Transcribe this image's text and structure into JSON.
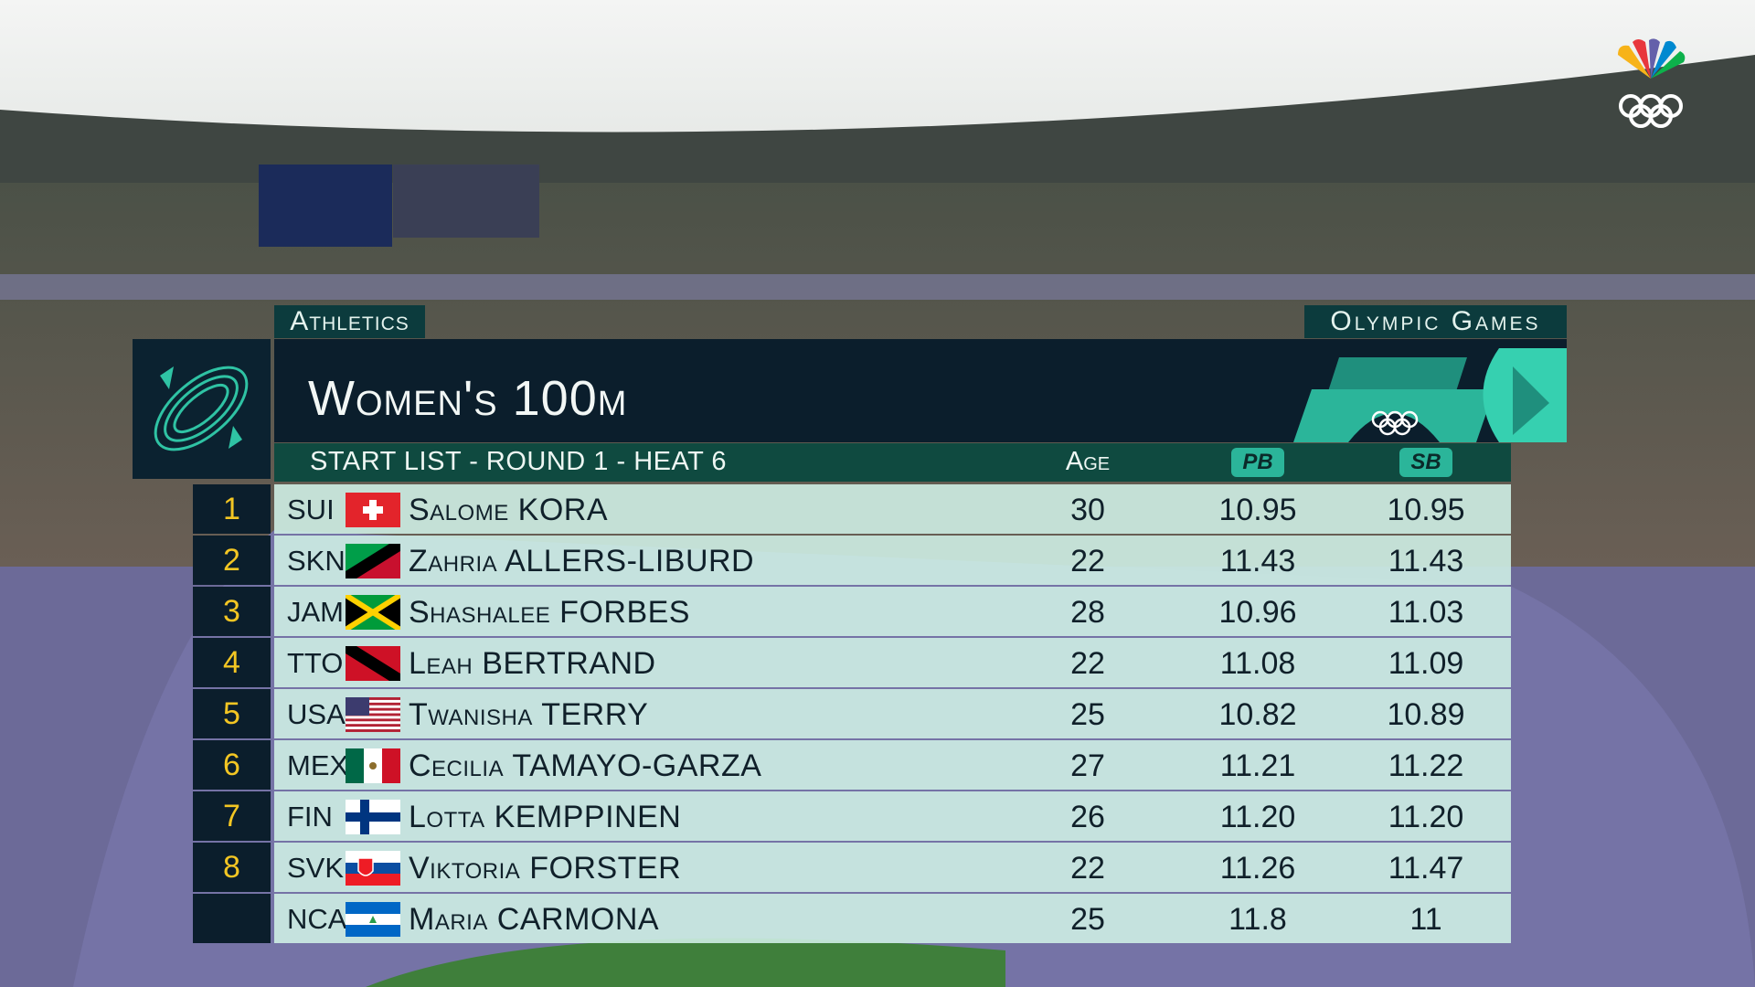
{
  "header": {
    "sport": "Athletics",
    "games": "Olympic Games",
    "title": "Women's 100m",
    "subtitle": "START LIST - ROUND 1 - HEAT 6"
  },
  "table": {
    "columns": [
      "Age",
      "PB",
      "SB"
    ],
    "rows": [
      {
        "rank": "1",
        "country": "SUI",
        "name": "Salome KORA",
        "age": "30",
        "pb": "10.95",
        "sb": "10.95"
      },
      {
        "rank": "2",
        "country": "SKN",
        "name": "Zahria ALLERS-LIBURD",
        "age": "22",
        "pb": "11.43",
        "sb": "11.43"
      },
      {
        "rank": "3",
        "country": "JAM",
        "name": "Shashalee FORBES",
        "age": "28",
        "pb": "10.96",
        "sb": "11.03"
      },
      {
        "rank": "4",
        "country": "TTO",
        "name": "Leah BERTRAND",
        "age": "22",
        "pb": "11.08",
        "sb": "11.09"
      },
      {
        "rank": "5",
        "country": "USA",
        "name": "Twanisha TERRY",
        "age": "25",
        "pb": "10.82",
        "sb": "10.89"
      },
      {
        "rank": "6",
        "country": "MEX",
        "name": "Cecilia TAMAYO-GARZA",
        "age": "27",
        "pb": "11.21",
        "sb": "11.22"
      },
      {
        "rank": "7",
        "country": "FIN",
        "name": "Lotta KEMPPINEN",
        "age": "26",
        "pb": "11.20",
        "sb": "11.20"
      },
      {
        "rank": "8",
        "country": "SVK",
        "name": "Viktoria FORSTER",
        "age": "22",
        "pb": "11.26",
        "sb": "11.47"
      },
      {
        "country": "NCA",
        "name": "Maria CARMONA",
        "age": "25",
        "pb": "11.8",
        "sb": "11"
      }
    ]
  }
}
